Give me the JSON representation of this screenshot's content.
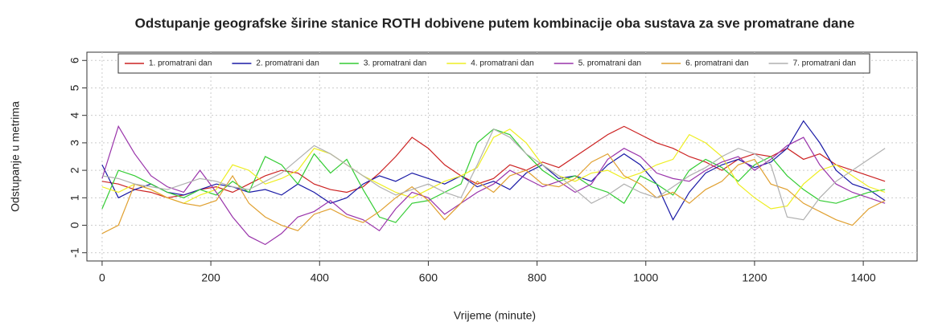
{
  "chart_data": {
    "type": "line",
    "title": "Odstupanje geografske širine stanice ROTH dobivene putem kombinacije oba sustava za sve promatrane dane",
    "xlabel": "Vrijeme (minute)",
    "ylabel": "Odstupanje u metrima",
    "x": [
      0,
      30,
      60,
      90,
      120,
      150,
      180,
      210,
      240,
      270,
      300,
      330,
      360,
      390,
      420,
      450,
      480,
      510,
      540,
      570,
      600,
      630,
      660,
      690,
      720,
      750,
      780,
      810,
      840,
      870,
      900,
      930,
      960,
      990,
      1020,
      1050,
      1080,
      1110,
      1140,
      1170,
      1200,
      1230,
      1260,
      1290,
      1320,
      1350,
      1380,
      1410,
      1440
    ],
    "xlim": [
      -28,
      1499
    ],
    "ylim": [
      -1.3,
      6.3
    ],
    "xticks": [
      0,
      200,
      400,
      600,
      800,
      1000,
      1200,
      1400
    ],
    "yticks": [
      -1,
      0,
      1,
      2,
      3,
      4,
      5,
      6
    ],
    "grid": true,
    "legend": "top",
    "series": [
      {
        "name": "1. promatrani dan",
        "color": "#cc2222",
        "values": [
          1.6,
          1.5,
          1.3,
          1.2,
          1.0,
          1.1,
          1.3,
          1.4,
          1.2,
          1.5,
          1.8,
          2.0,
          1.9,
          1.5,
          1.3,
          1.2,
          1.4,
          1.9,
          2.5,
          3.2,
          2.8,
          2.2,
          1.8,
          1.5,
          1.7,
          2.2,
          2.0,
          2.3,
          2.1,
          2.5,
          2.9,
          3.3,
          3.6,
          3.3,
          3.0,
          2.8,
          2.5,
          2.3,
          2.0,
          2.4,
          2.6,
          2.5,
          2.8,
          2.4,
          2.6,
          2.2,
          2.0,
          1.8,
          1.6
        ]
      },
      {
        "name": "2. promatrani dan",
        "color": "#1a1aa6",
        "values": [
          2.2,
          1.0,
          1.3,
          1.5,
          1.2,
          1.1,
          1.3,
          1.5,
          1.4,
          1.2,
          1.3,
          1.1,
          1.5,
          1.2,
          0.8,
          1.0,
          1.5,
          1.8,
          1.6,
          1.9,
          1.7,
          1.5,
          1.8,
          1.4,
          1.6,
          1.3,
          1.9,
          2.2,
          1.7,
          1.8,
          1.6,
          2.2,
          2.6,
          2.2,
          1.5,
          0.2,
          1.2,
          1.9,
          2.2,
          2.4,
          2.1,
          2.3,
          2.8,
          3.8,
          3.0,
          2.0,
          1.5,
          1.3,
          0.9
        ]
      },
      {
        "name": "3. promatrani dan",
        "color": "#33cc33",
        "values": [
          0.6,
          2.0,
          1.8,
          1.5,
          1.2,
          1.0,
          1.3,
          1.1,
          1.6,
          1.2,
          2.5,
          2.2,
          1.5,
          2.6,
          1.9,
          2.4,
          1.3,
          0.3,
          0.1,
          0.8,
          0.9,
          1.2,
          1.5,
          3.0,
          3.5,
          3.3,
          2.6,
          2.0,
          1.6,
          1.8,
          1.4,
          1.2,
          0.8,
          1.8,
          1.5,
          1.1,
          2.0,
          2.4,
          2.1,
          1.6,
          2.2,
          2.5,
          1.8,
          1.3,
          0.9,
          0.8,
          1.0,
          1.2,
          1.3
        ]
      },
      {
        "name": "4. promatrani dan",
        "color": "#eeee22",
        "values": [
          1.4,
          1.2,
          1.5,
          1.3,
          1.0,
          0.8,
          1.1,
          1.3,
          2.2,
          2.0,
          1.5,
          1.7,
          2.0,
          2.8,
          2.6,
          2.2,
          1.8,
          1.5,
          1.2,
          1.0,
          1.3,
          1.6,
          1.8,
          2.1,
          3.2,
          3.5,
          3.0,
          2.2,
          1.8,
          1.6,
          1.9,
          2.0,
          1.7,
          1.9,
          2.2,
          2.4,
          3.3,
          3.0,
          2.5,
          1.5,
          1.0,
          0.6,
          0.7,
          1.5,
          2.0,
          2.2,
          1.8,
          1.4,
          1.2
        ]
      },
      {
        "name": "5. promatrani dan",
        "color": "#9933aa",
        "values": [
          1.7,
          3.6,
          2.6,
          1.8,
          1.4,
          1.2,
          2.0,
          1.2,
          0.3,
          -0.4,
          -0.7,
          -0.3,
          0.3,
          0.5,
          0.9,
          0.4,
          0.2,
          -0.2,
          0.6,
          1.2,
          1.0,
          0.4,
          0.8,
          1.2,
          1.5,
          2.0,
          1.7,
          1.4,
          1.6,
          1.2,
          1.5,
          2.4,
          2.8,
          2.5,
          1.9,
          1.7,
          1.6,
          2.0,
          2.3,
          2.5,
          2.0,
          2.4,
          2.9,
          3.2,
          2.2,
          1.5,
          1.2,
          1.0,
          0.8
        ]
      },
      {
        "name": "6. promatrani dan",
        "color": "#e0a030",
        "values": [
          -0.3,
          0.0,
          1.5,
          1.3,
          1.0,
          0.8,
          0.7,
          0.9,
          1.8,
          0.8,
          0.3,
          0.0,
          -0.2,
          0.4,
          0.6,
          0.3,
          0.1,
          0.5,
          1.0,
          1.4,
          0.9,
          0.2,
          0.8,
          1.6,
          1.2,
          1.8,
          2.0,
          1.5,
          1.4,
          1.7,
          2.3,
          2.6,
          1.8,
          1.5,
          1.0,
          1.2,
          0.8,
          1.3,
          1.6,
          2.2,
          2.4,
          1.5,
          1.3,
          0.8,
          0.5,
          0.2,
          0.0,
          0.6,
          0.9
        ]
      },
      {
        "name": "7. promatrani dan",
        "color": "#b0b0b0",
        "values": [
          1.8,
          1.7,
          1.5,
          1.4,
          1.3,
          1.5,
          1.7,
          1.6,
          1.4,
          1.3,
          1.6,
          1.9,
          2.4,
          2.9,
          2.6,
          2.2,
          1.8,
          1.4,
          1.1,
          1.3,
          1.5,
          1.2,
          1.0,
          2.2,
          3.5,
          3.2,
          2.6,
          2.2,
          1.8,
          1.3,
          0.8,
          1.1,
          1.5,
          1.2,
          1.0,
          1.4,
          1.8,
          2.1,
          2.5,
          2.8,
          2.6,
          2.2,
          0.3,
          0.2,
          1.0,
          1.6,
          2.0,
          2.4,
          2.8
        ]
      }
    ]
  }
}
